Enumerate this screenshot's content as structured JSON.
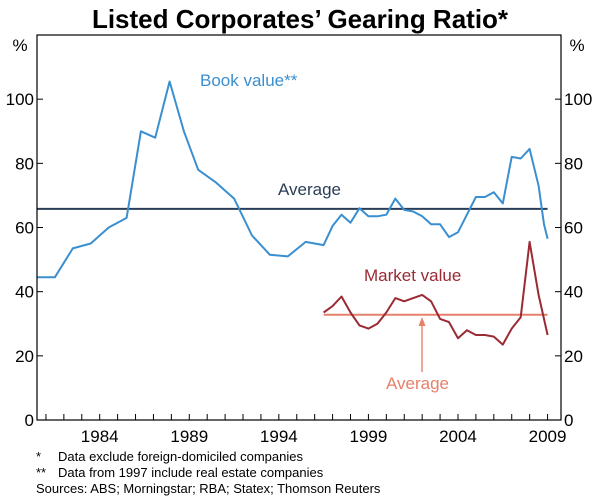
{
  "chart_data": {
    "type": "line",
    "title": "Listed Corporates’ Gearing Ratio*",
    "y_unit_left": "%",
    "y_unit_right": "%",
    "ylim": [
      0,
      120
    ],
    "yticks": [
      0,
      20,
      40,
      60,
      80,
      100
    ],
    "x_range": [
      1980.5,
      2009.75
    ],
    "xticks": [
      1984,
      1989,
      1994,
      1999,
      2004,
      2009
    ],
    "grid": false,
    "series": [
      {
        "name": "Book value**",
        "color": "#3a8fd0",
        "points": [
          [
            1980.5,
            44.5
          ],
          [
            1981.5,
            44.5
          ],
          [
            1982.5,
            53.5
          ],
          [
            1983.5,
            55
          ],
          [
            1984.5,
            60
          ],
          [
            1985.5,
            63
          ],
          [
            1986.3,
            90
          ],
          [
            1987.1,
            88
          ],
          [
            1987.9,
            105.5
          ],
          [
            1988.7,
            90
          ],
          [
            1989.5,
            78
          ],
          [
            1990.5,
            74
          ],
          [
            1991.5,
            69
          ],
          [
            1992.5,
            57.5
          ],
          [
            1993.5,
            51.5
          ],
          [
            1994.5,
            51
          ],
          [
            1995.5,
            55.5
          ],
          [
            1996.5,
            54.5
          ],
          [
            1997.0,
            60.5
          ],
          [
            1997.5,
            64
          ],
          [
            1998.0,
            61.5
          ],
          [
            1998.5,
            66
          ],
          [
            1999.0,
            63.5
          ],
          [
            1999.5,
            63.5
          ],
          [
            2000.0,
            64
          ],
          [
            2000.5,
            69
          ],
          [
            2001.0,
            65.5
          ],
          [
            2001.5,
            65
          ],
          [
            2002.0,
            63.5
          ],
          [
            2002.5,
            61
          ],
          [
            2003.0,
            61
          ],
          [
            2003.5,
            57
          ],
          [
            2004.0,
            58.5
          ],
          [
            2004.5,
            64
          ],
          [
            2005.0,
            69.5
          ],
          [
            2005.5,
            69.5
          ],
          [
            2006.0,
            71
          ],
          [
            2006.5,
            67.5
          ],
          [
            2007.0,
            82
          ],
          [
            2007.5,
            81.5
          ],
          [
            2008.0,
            84.5
          ],
          [
            2008.5,
            73
          ],
          [
            2008.8,
            61
          ],
          [
            2009.0,
            56.5
          ]
        ]
      },
      {
        "name": "Market value",
        "color": "#9a2a33",
        "points": [
          [
            1996.5,
            33.5
          ],
          [
            1997.0,
            35.5
          ],
          [
            1997.5,
            38.5
          ],
          [
            1998.0,
            33.5
          ],
          [
            1998.5,
            29.5
          ],
          [
            1999.0,
            28.5
          ],
          [
            1999.5,
            30
          ],
          [
            2000.0,
            33.5
          ],
          [
            2000.5,
            38
          ],
          [
            2001.0,
            37
          ],
          [
            2001.5,
            38
          ],
          [
            2002.0,
            39
          ],
          [
            2002.5,
            37
          ],
          [
            2003.0,
            31.5
          ],
          [
            2003.5,
            30.5
          ],
          [
            2004.0,
            25.5
          ],
          [
            2004.5,
            28
          ],
          [
            2005.0,
            26.5
          ],
          [
            2005.5,
            26.5
          ],
          [
            2006.0,
            26
          ],
          [
            2006.5,
            23.5
          ],
          [
            2007.0,
            28.5
          ],
          [
            2007.5,
            32
          ],
          [
            2008.0,
            55.5
          ],
          [
            2008.5,
            39
          ],
          [
            2009.0,
            26.5
          ]
        ]
      }
    ],
    "averages": [
      {
        "label": "Average",
        "value": 65.8,
        "x_from": 1980.5,
        "x_to": 2009.0,
        "color": "#2b3e57"
      },
      {
        "label": "Average",
        "value": 32.8,
        "x_from": 1996.5,
        "x_to": 2009.0,
        "color": "#e6806a"
      }
    ]
  },
  "footnotes": [
    {
      "marker": "*",
      "text": "Data exclude foreign-domiciled companies"
    },
    {
      "marker": "**",
      "text": "Data from 1997 include real estate companies"
    }
  ],
  "sources": "Sources: ABS; Morningstar; RBA; Statex; Thomson Reuters"
}
